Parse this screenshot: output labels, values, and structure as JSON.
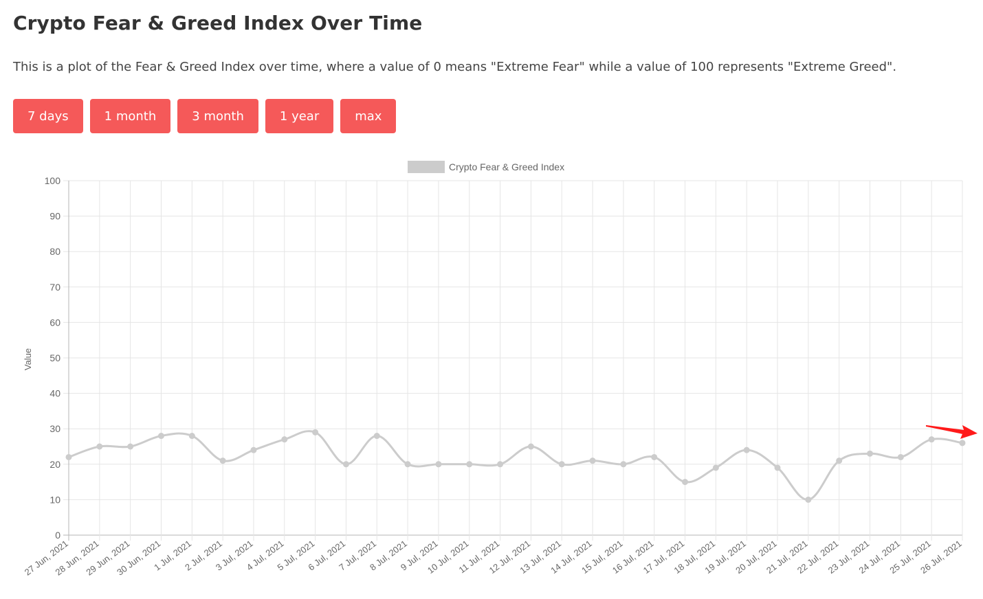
{
  "page": {
    "title": "Crypto Fear & Greed Index Over Time",
    "description": "This is a plot of the Fear & Greed Index over time, where a value of 0 means \"Extreme Fear\" while a value of 100 represents \"Extreme Greed\"."
  },
  "buttons": {
    "days7": "7 days",
    "month1": "1 month",
    "month3": "3 month",
    "year1": "1 year",
    "max": "max"
  },
  "colors": {
    "button_bg": "#f55959",
    "line": "#cccccc",
    "grid": "#e5e5e5",
    "annotation_arrow": "#ff1a1a"
  },
  "chart_data": {
    "type": "line",
    "title": "",
    "xlabel": "",
    "ylabel": "Value",
    "ylim": [
      0,
      100
    ],
    "yticks": [
      0,
      10,
      20,
      30,
      40,
      50,
      60,
      70,
      80,
      90,
      100
    ],
    "grid": true,
    "legend_position": "top-center",
    "categories": [
      "27 Jun, 2021",
      "28 Jun, 2021",
      "29 Jun, 2021",
      "30 Jun, 2021",
      "1 Jul, 2021",
      "2 Jul, 2021",
      "3 Jul, 2021",
      "4 Jul, 2021",
      "5 Jul, 2021",
      "6 Jul, 2021",
      "7 Jul, 2021",
      "8 Jul, 2021",
      "9 Jul, 2021",
      "10 Jul, 2021",
      "11 Jul, 2021",
      "12 Jul, 2021",
      "13 Jul, 2021",
      "14 Jul, 2021",
      "15 Jul, 2021",
      "16 Jul, 2021",
      "17 Jul, 2021",
      "18 Jul, 2021",
      "19 Jul, 2021",
      "20 Jul, 2021",
      "21 Jul, 2021",
      "22 Jul, 2021",
      "23 Jul, 2021",
      "24 Jul, 2021",
      "25 Jul, 2021",
      "26 Jul, 2021"
    ],
    "series": [
      {
        "name": "Crypto Fear & Greed Index",
        "color": "#cccccc",
        "values": [
          22,
          25,
          25,
          28,
          28,
          21,
          24,
          27,
          29,
          20,
          28,
          20,
          20,
          20,
          20,
          25,
          20,
          21,
          20,
          22,
          15,
          19,
          24,
          19,
          10,
          21,
          23,
          22,
          27,
          26
        ]
      }
    ],
    "annotation": {
      "type": "arrow",
      "points_to": "26 Jul, 2021",
      "color": "#ff1a1a"
    }
  }
}
